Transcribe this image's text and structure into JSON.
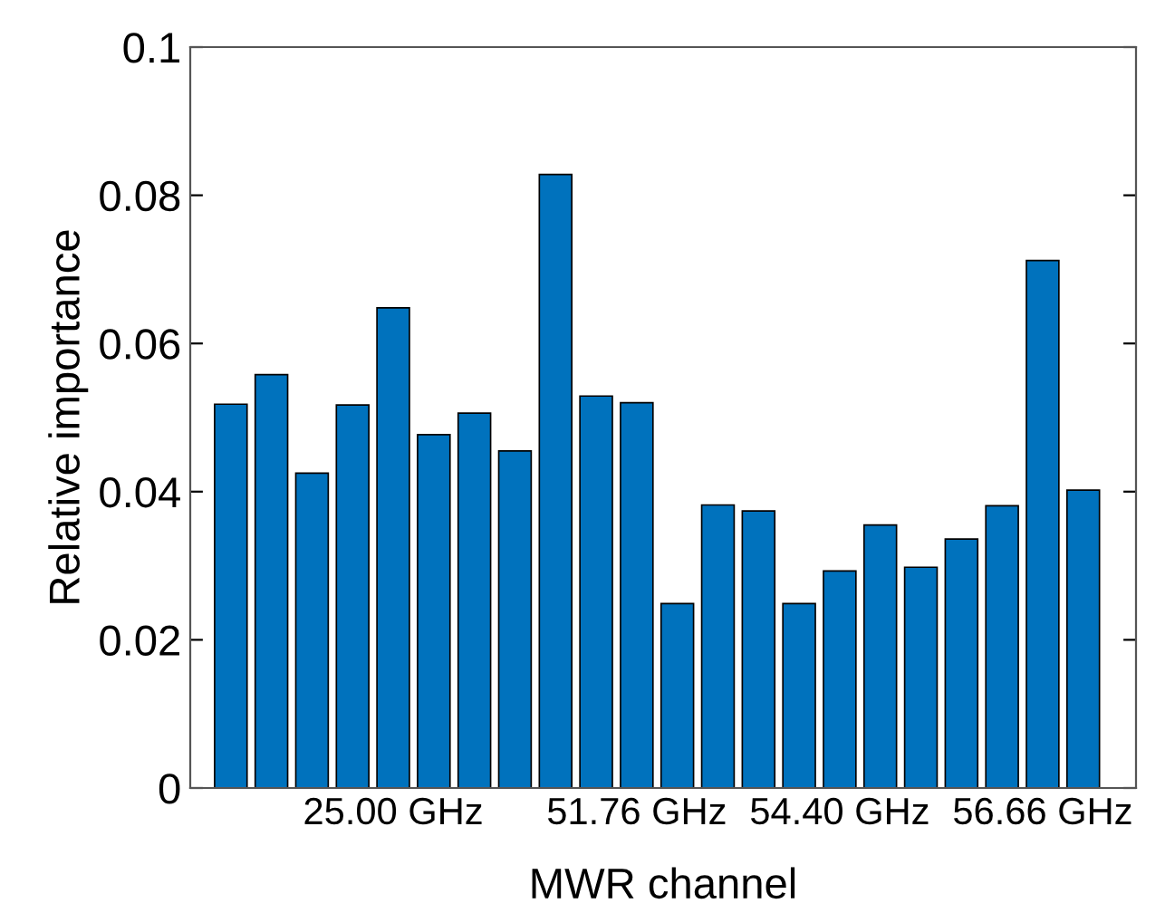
{
  "chart_data": {
    "type": "bar",
    "xlabel": "MWR channel",
    "ylabel": "Relative importance",
    "categories": [
      null,
      null,
      null,
      null,
      "25.00 GHz",
      null,
      null,
      null,
      null,
      null,
      "51.76 GHz",
      null,
      null,
      null,
      null,
      "54.40 GHz",
      null,
      null,
      null,
      null,
      "56.66 GHz",
      null
    ],
    "values": [
      0.0518,
      0.0558,
      0.0425,
      0.0517,
      0.0648,
      0.0477,
      0.0506,
      0.0455,
      0.0828,
      0.0529,
      0.052,
      0.0249,
      0.0382,
      0.0374,
      0.0249,
      0.0293,
      0.0355,
      0.0298,
      0.0336,
      0.0381,
      0.0712,
      0.0402
    ],
    "color": "#0072bd",
    "ylim": [
      0,
      0.1
    ],
    "yticks": [
      0,
      0.02,
      0.04,
      0.06,
      0.08,
      0.1
    ],
    "grid": false,
    "legend": false
  }
}
